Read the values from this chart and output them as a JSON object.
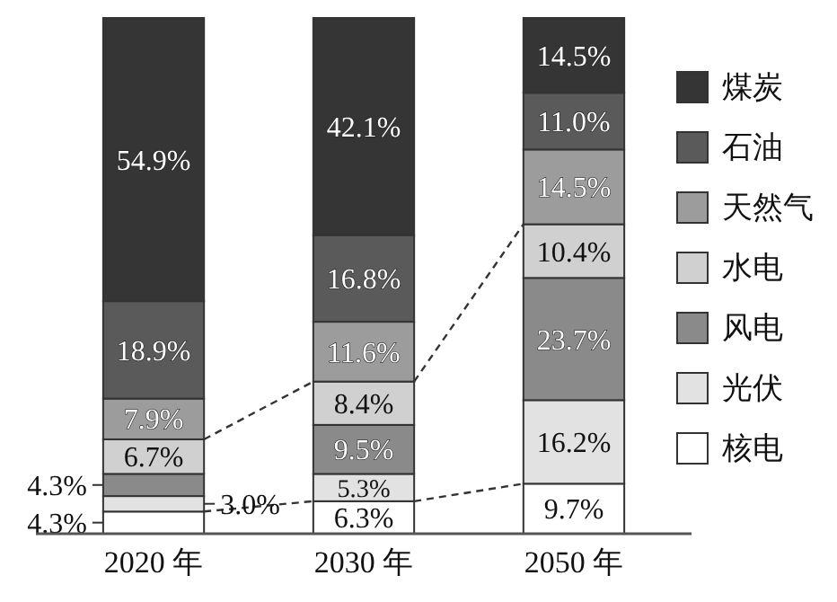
{
  "chart_data": {
    "type": "bar",
    "stacked": true,
    "categories": [
      "2020 年",
      "2030 年",
      "2050 年"
    ],
    "legend": "right",
    "series": [
      {
        "name": "核电",
        "color": "#ffffff",
        "values": [
          4.3,
          6.3,
          9.7
        ],
        "value_labels": [
          "4.3%",
          "6.3%",
          "9.7%"
        ]
      },
      {
        "name": "光伏",
        "color": "#e2e2e2",
        "values": [
          3.0,
          5.3,
          16.2
        ],
        "value_labels": [
          "3.0%",
          "5.3%",
          "16.2%"
        ]
      },
      {
        "name": "风电",
        "color": "#8a8a8a",
        "values": [
          4.3,
          9.5,
          23.7
        ],
        "value_labels": [
          "4.3%",
          "9.5%",
          "23.7%"
        ]
      },
      {
        "name": "水电",
        "color": "#d0d0d0",
        "values": [
          6.7,
          8.4,
          10.4
        ],
        "value_labels": [
          "6.7%",
          "8.4%",
          "10.4%"
        ]
      },
      {
        "name": "天然气",
        "color": "#9c9c9c",
        "values": [
          7.9,
          11.6,
          14.5
        ],
        "value_labels": [
          "7.9%",
          "11.6%",
          "14.5%"
        ]
      },
      {
        "name": "石油",
        "color": "#5a5a5a",
        "values": [
          18.9,
          16.8,
          11.0
        ],
        "value_labels": [
          "18.9%",
          "16.8%",
          "11.0%"
        ]
      },
      {
        "name": "煤炭",
        "color": "#353535",
        "values": [
          54.9,
          42.1,
          14.5
        ],
        "value_labels": [
          "54.9%",
          "42.1%",
          "14.5%"
        ]
      }
    ]
  }
}
